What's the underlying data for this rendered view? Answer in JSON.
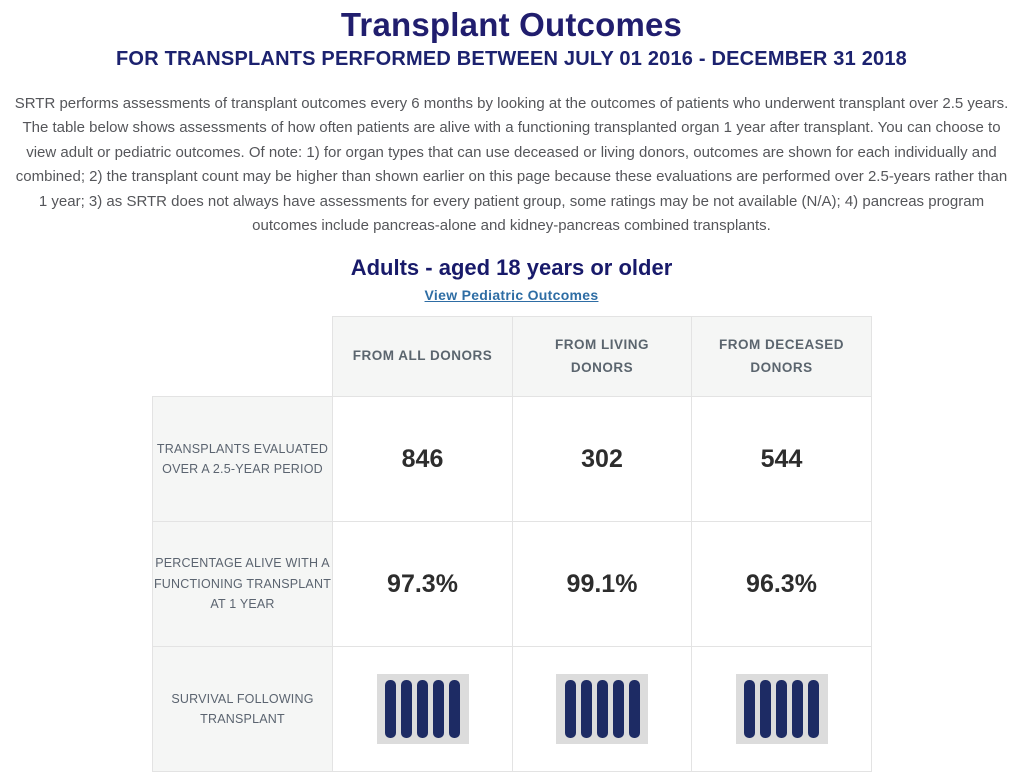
{
  "header": {
    "title": "Transplant Outcomes",
    "subtitle": "FOR TRANSPLANTS PERFORMED BETWEEN JULY 01 2016 - DECEMBER 31 2018"
  },
  "intro": {
    "text": "SRTR performs assessments of transplant outcomes every 6 months by looking at the outcomes of patients who underwent transplant over 2.5 years. The table below shows assessments of how often patients are alive with a functioning transplanted organ 1 year after transplant. You can choose to view adult or pediatric outcomes. Of note: 1) for organ types that can use deceased or living donors, outcomes are shown for each individually and combined; 2) the transplant count may be higher than shown earlier on this page because these evaluations are performed over 2.5-years rather than 1 year; 3) as SRTR does not always have assessments for every patient group, some ratings may be not available (N/A); 4) pancreas program outcomes include pancreas-alone and kidney-pancreas combined transplants."
  },
  "adults_section": {
    "heading": "Adults - aged 18 years or older",
    "pediatric_link_label": "View Pediatric Outcomes"
  },
  "outcomes_table": {
    "column_headers": [
      "FROM ALL DONORS",
      "FROM LIVING\nDONORS",
      "FROM DECEASED\nDONORS"
    ],
    "rows": [
      {
        "label": "TRANSPLANTS EVALUATED\nOVER A 2.5-YEAR PERIOD",
        "type": "text",
        "values": [
          "846",
          "302",
          "544"
        ]
      },
      {
        "label": "PERCENTAGE ALIVE WITH A\nFUNCTIONING TRANSPLANT\nAT 1 YEAR",
        "type": "text",
        "values": [
          "97.3%",
          "99.1%",
          "96.3%"
        ]
      },
      {
        "label": "SURVIVAL FOLLOWING\nTRANSPLANT",
        "type": "rating",
        "icon": "five-bar-rating-icon",
        "max_bars": 5,
        "values": [
          5,
          5,
          5
        ]
      }
    ]
  },
  "colors": {
    "title_navy": "#211e6e",
    "heading_navy": "#181a6a",
    "link_blue": "#2e6da4",
    "body_text_gray": "#55565a",
    "table_header_text": "#5b656e",
    "table_label_text": "#5b6470",
    "table_cell_bg_gray": "#f5f6f5",
    "table_border": "#e3e3e3",
    "value_text": "#2d2d2d",
    "rating_bar_navy": "#1d2b64",
    "rating_icon_bg": "#dcdcdc"
  }
}
